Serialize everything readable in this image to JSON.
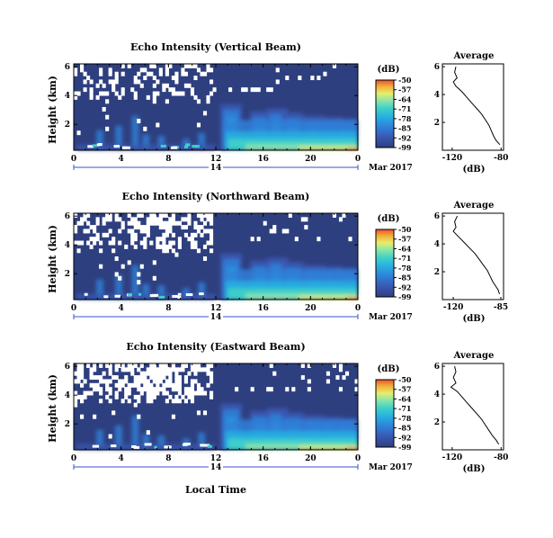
{
  "figure": {
    "time_axis_title": "Local Time",
    "day_label": "14",
    "month_label": "Mar 2017"
  },
  "colors": {
    "background": "#2e3f7f",
    "colormap": [
      "#2e3f7f",
      "#3a56b0",
      "#2f7fd8",
      "#27aee0",
      "#3fd0c8",
      "#8ee6a8",
      "#e6ee6a",
      "#f2b33c",
      "#e8532b"
    ],
    "missing": "#ffffff",
    "day_bracket": "#3b4fd6"
  },
  "chart_data": [
    {
      "type": "heatmap",
      "title": "Echo Intensity (Vertical Beam)",
      "ylabel": "Height (km)",
      "x_ticks": [
        "0",
        "4",
        "8",
        "12",
        "16",
        "20",
        "0"
      ],
      "x_range_hours": [
        0,
        24
      ],
      "y_ticks": [
        "2",
        "4",
        "6"
      ],
      "y_range_km": [
        0.2,
        6.2
      ],
      "colorbar": {
        "label": "(dB)",
        "ticks": [
          "-50",
          "-57",
          "-64",
          "-71",
          "-78",
          "-85",
          "-92",
          "-99"
        ]
      },
      "profile": {
        "title": "Average",
        "xlabel": "(dB)",
        "x_ticks": [
          "-120",
          "-80"
        ],
        "y_ticks": [
          "2",
          "4",
          "6"
        ],
        "points": [
          [
            -117,
            6.0
          ],
          [
            -118,
            5.6
          ],
          [
            -116,
            5.2
          ],
          [
            -119,
            4.9
          ],
          [
            -117,
            4.6
          ],
          [
            -112,
            4.2
          ],
          [
            -108,
            3.8
          ],
          [
            -104,
            3.4
          ],
          [
            -100,
            3.0
          ],
          [
            -96,
            2.6
          ],
          [
            -93,
            2.2
          ],
          [
            -90,
            1.8
          ],
          [
            -88,
            1.4
          ],
          [
            -86,
            1.0
          ],
          [
            -84,
            0.7
          ],
          [
            -81,
            0.4
          ]
        ]
      }
    },
    {
      "type": "heatmap",
      "title": "Echo Intensity (Northward Beam)",
      "ylabel": "Height (km)",
      "x_ticks": [
        "0",
        "4",
        "8",
        "12",
        "16",
        "20",
        "0"
      ],
      "x_range_hours": [
        0,
        24
      ],
      "y_ticks": [
        "2",
        "4",
        "6"
      ],
      "y_range_km": [
        0.2,
        6.2
      ],
      "colorbar": {
        "label": "(dB)",
        "ticks": [
          "-50",
          "-57",
          "-64",
          "-71",
          "-78",
          "-85",
          "-92",
          "-99"
        ]
      },
      "profile": {
        "title": "Average",
        "xlabel": "(dB)",
        "x_ticks": [
          "-120",
          "-85"
        ],
        "y_ticks": [
          "2",
          "4",
          "6"
        ],
        "points": [
          [
            -117,
            6.0
          ],
          [
            -119,
            5.6
          ],
          [
            -118,
            5.2
          ],
          [
            -120,
            4.9
          ],
          [
            -116,
            4.5
          ],
          [
            -112,
            4.1
          ],
          [
            -108,
            3.7
          ],
          [
            -104,
            3.3
          ],
          [
            -101,
            2.9
          ],
          [
            -98,
            2.5
          ],
          [
            -95,
            2.1
          ],
          [
            -93,
            1.7
          ],
          [
            -91,
            1.3
          ],
          [
            -89,
            1.0
          ],
          [
            -87,
            0.7
          ],
          [
            -86,
            0.4
          ]
        ]
      }
    },
    {
      "type": "heatmap",
      "title": "Echo Intensity (Eastward Beam)",
      "ylabel": "Height (km)",
      "x_ticks": [
        "0",
        "4",
        "8",
        "12",
        "16",
        "20",
        "0"
      ],
      "x_range_hours": [
        0,
        24
      ],
      "y_ticks": [
        "2",
        "4",
        "6"
      ],
      "y_range_km": [
        0.2,
        6.2
      ],
      "colorbar": {
        "label": "(dB)",
        "ticks": [
          "-50",
          "-57",
          "-64",
          "-71",
          "-78",
          "-85",
          "-92",
          "-99"
        ]
      },
      "profile": {
        "title": "Average",
        "xlabel": "(dB)",
        "x_ticks": [
          "-120",
          "-80"
        ],
        "y_ticks": [
          "2",
          "4",
          "6"
        ],
        "points": [
          [
            -118,
            6.0
          ],
          [
            -117,
            5.6
          ],
          [
            -119,
            5.2
          ],
          [
            -117,
            4.8
          ],
          [
            -121,
            4.5
          ],
          [
            -116,
            4.2
          ],
          [
            -112,
            3.8
          ],
          [
            -108,
            3.4
          ],
          [
            -104,
            3.0
          ],
          [
            -100,
            2.6
          ],
          [
            -96,
            2.2
          ],
          [
            -93,
            1.8
          ],
          [
            -90,
            1.4
          ],
          [
            -87,
            1.0
          ],
          [
            -84,
            0.7
          ],
          [
            -82,
            0.4
          ]
        ]
      }
    }
  ]
}
